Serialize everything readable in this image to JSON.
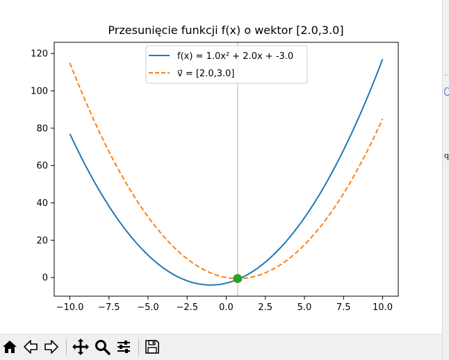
{
  "window": {
    "toolbar": {
      "buttons": [
        {
          "name": "home-icon"
        },
        {
          "name": "back-icon"
        },
        {
          "name": "forward-icon"
        },
        {
          "name": "pan-icon"
        },
        {
          "name": "zoom-icon"
        },
        {
          "name": "configure-subplots-icon"
        },
        {
          "name": "save-icon"
        }
      ]
    }
  },
  "chart_data": {
    "type": "line",
    "title": "Przesunięcie funkcji f(x) o wektor [2.0,3.0]",
    "xlabel": "",
    "ylabel": "",
    "xlim": [
      -11,
      11.0
    ],
    "ylim": [
      -10,
      126
    ],
    "x_ticks": [
      -10.0,
      -7.5,
      -5.0,
      -2.5,
      0.0,
      2.5,
      5.0,
      7.5,
      10.0
    ],
    "x_tick_labels": [
      "−10.0",
      "−7.5",
      "−5.0",
      "−2.5",
      "0.0",
      "2.5",
      "5.0",
      "7.5",
      "10.0"
    ],
    "y_ticks": [
      0,
      20,
      40,
      60,
      80,
      100,
      120
    ],
    "y_tick_labels": [
      "0",
      "20",
      "40",
      "60",
      "80",
      "100",
      "120"
    ],
    "grid": false,
    "legend_position": "top-center",
    "vertical_line": {
      "x": 0.73,
      "color": "#cccccc"
    },
    "series": [
      {
        "name": "f(x) = 1.0x² + 2.0x + -3.0",
        "style": "solid",
        "color": "#1f77b4",
        "x_range": [
          -10,
          10
        ],
        "coefficients": {
          "a": 1.0,
          "b": 2.0,
          "c": -3.0
        }
      },
      {
        "name": "v⃗ = [2.0,3.0]",
        "style": "dashed",
        "color": "#ff7f0e",
        "x_range": [
          -10,
          10
        ],
        "coefficients": {
          "a": 1.0,
          "b": -1.5,
          "c": 0.0
        }
      }
    ],
    "points": [
      {
        "x": 0.73,
        "y": -0.55,
        "color": "#2ca02c"
      }
    ]
  }
}
